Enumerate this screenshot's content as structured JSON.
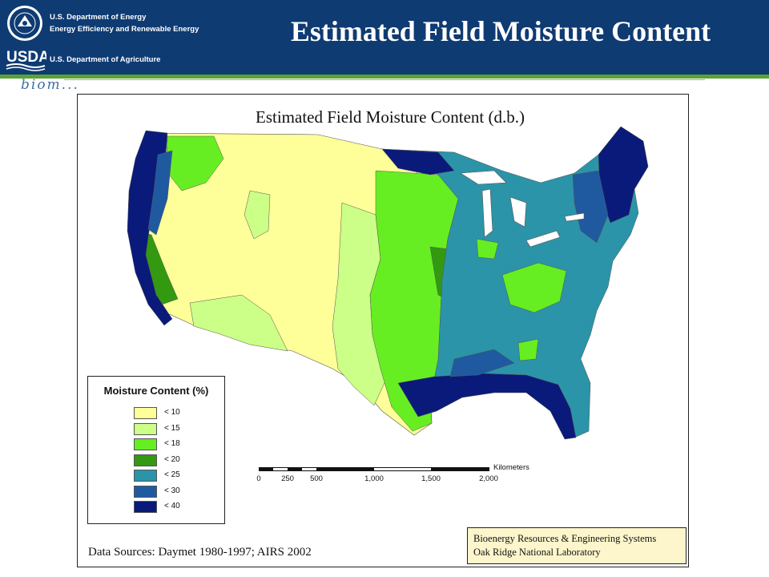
{
  "header": {
    "doe_line1": "U.S. Department of Energy",
    "doe_line2": "Energy Efficiency and Renewable Energy",
    "usda_line": "U.S. Department of Agriculture",
    "usda_logo_text": "USDA",
    "title": "Estimated Field Moisture Content",
    "wordmark": "biom..."
  },
  "map": {
    "title": "Estimated Field Moisture Content (d.b.)",
    "legend": {
      "title": "Moisture Content (%)",
      "items": [
        {
          "label": "< 10",
          "color": "#ffff99"
        },
        {
          "label": "< 15",
          "color": "#ccff88"
        },
        {
          "label": "< 18",
          "color": "#66ee22"
        },
        {
          "label": "< 20",
          "color": "#339911"
        },
        {
          "label": "< 25",
          "color": "#2b94a8"
        },
        {
          "label": "< 30",
          "color": "#1f5aa0"
        },
        {
          "label": "< 40",
          "color": "#0a1a7a"
        }
      ]
    },
    "scale": {
      "unit": "Kilometers",
      "ticks": [
        "0",
        "250",
        "500",
        "1,000",
        "1,500",
        "2,000"
      ]
    },
    "sources": "Data Sources: Daymet 1980-1997; AIRS 2002",
    "credit_line1": "Bioenergy Resources & Engineering Systems",
    "credit_line2": "Oak Ridge National Laboratory"
  }
}
